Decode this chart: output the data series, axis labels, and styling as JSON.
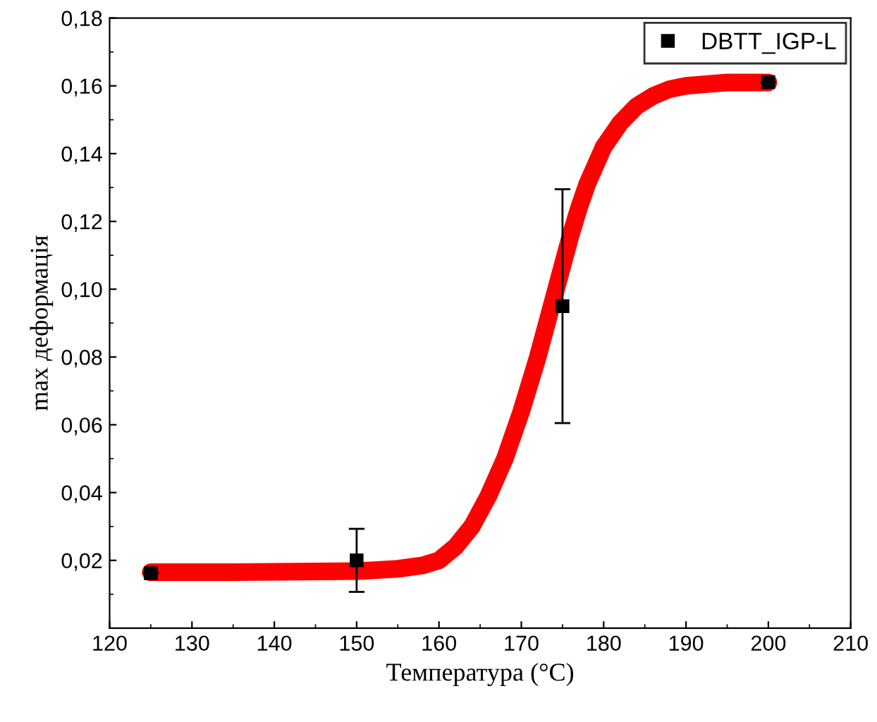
{
  "chart_data": {
    "type": "scatter",
    "xlabel": "Температура (°C)",
    "ylabel": "max деформація",
    "xlim": [
      120,
      210
    ],
    "xticks": [
      120,
      130,
      140,
      150,
      160,
      170,
      180,
      190,
      200,
      210
    ],
    "ylim": [
      0,
      0.18
    ],
    "yticks": [
      {
        "value": 0.02,
        "label": "0,02"
      },
      {
        "value": 0.04,
        "label": "0,04"
      },
      {
        "value": 0.06,
        "label": "0,06"
      },
      {
        "value": 0.08,
        "label": "0,08"
      },
      {
        "value": 0.1,
        "label": "0,10"
      },
      {
        "value": 0.12,
        "label": "0,12"
      },
      {
        "value": 0.14,
        "label": "0,14"
      },
      {
        "value": 0.16,
        "label": "0,16"
      },
      {
        "value": 0.18,
        "label": "0,18"
      }
    ],
    "grid": false,
    "legend": "top right",
    "series": [
      {
        "type": "line",
        "color": "#ff0000",
        "x": [
          125,
          135,
          145,
          150,
          155,
          158,
          160,
          162,
          164,
          166,
          168,
          170,
          171,
          172,
          173,
          174,
          175,
          176,
          177,
          178,
          180,
          182,
          184,
          186,
          188,
          190,
          195,
          200
        ],
        "values": [
          0.0165,
          0.0165,
          0.0167,
          0.0168,
          0.0175,
          0.0185,
          0.02,
          0.024,
          0.03,
          0.039,
          0.05,
          0.064,
          0.072,
          0.08,
          0.089,
          0.098,
          0.107,
          0.116,
          0.124,
          0.131,
          0.142,
          0.149,
          0.154,
          0.157,
          0.159,
          0.16,
          0.161,
          0.161
        ]
      },
      {
        "name": "DBTT_IGP-L",
        "color": "#000000",
        "marker": "square",
        "x": [
          125,
          150,
          175,
          200
        ],
        "values": [
          0.0162,
          0.02,
          0.095,
          0.1611
        ],
        "errors": [
          null,
          0.0093,
          0.0345,
          null
        ]
      }
    ]
  }
}
